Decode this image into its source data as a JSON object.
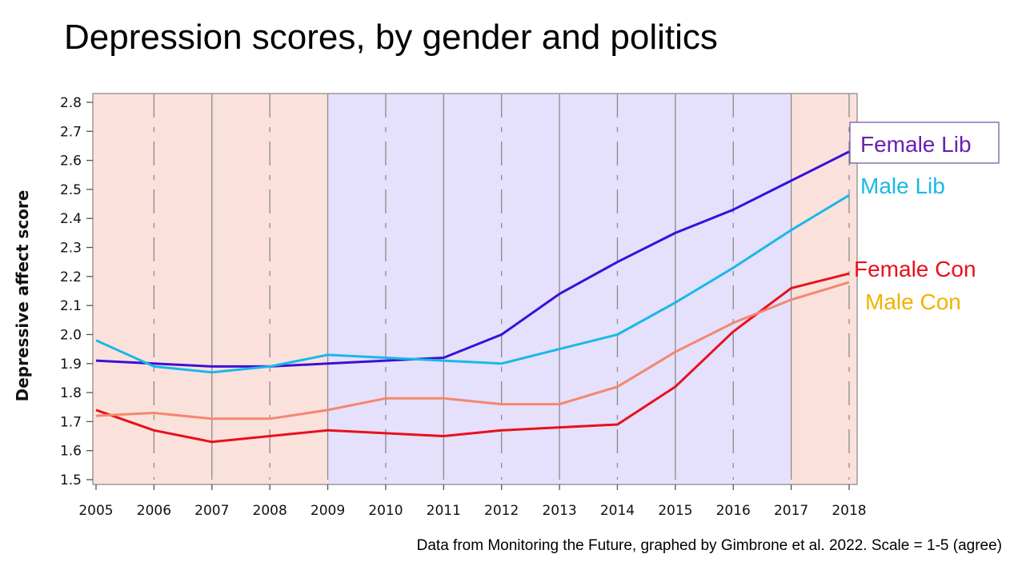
{
  "title": "Depression scores, by gender and politics",
  "source_note": "Data from Monitoring the Future, graphed by Gimbrone et al. 2022. Scale = 1-5 (agree)",
  "chart_data": {
    "type": "line",
    "title": "Depression scores, by gender and politics",
    "xlabel": "",
    "ylabel": "Depressive affect score",
    "x": [
      2005,
      2006,
      2007,
      2008,
      2009,
      2010,
      2011,
      2012,
      2013,
      2014,
      2015,
      2016,
      2017,
      2018
    ],
    "xlim": [
      2005,
      2018
    ],
    "ylim": [
      1.5,
      2.8
    ],
    "yticks": [
      "1.5",
      "1.6",
      "1.7",
      "1.8",
      "1.9",
      "2.0",
      "2.1",
      "2.2",
      "2.3",
      "2.4",
      "2.5",
      "2.6",
      "2.7",
      "2.8"
    ],
    "xticks": [
      "2005",
      "2006",
      "2007",
      "2008",
      "2009",
      "2010",
      "2011",
      "2012",
      "2013",
      "2014",
      "2015",
      "2016",
      "2017",
      "2018"
    ],
    "grid": "vertical lines at each year (dashed on even years)",
    "legend": "right, labels at line ends",
    "background_bands": [
      {
        "from": 2005,
        "to": 2009,
        "color": "#fbe1dc"
      },
      {
        "from": 2009,
        "to": 2017,
        "color": "#e5e0fb"
      },
      {
        "from": 2017,
        "to": 2018,
        "color": "#fbe1dc"
      }
    ],
    "series": [
      {
        "name": "Female Lib",
        "color": "#3a10d8",
        "label_color": "#6a1fb0",
        "values": [
          1.91,
          1.9,
          1.89,
          1.89,
          1.9,
          1.91,
          1.92,
          2.0,
          2.14,
          2.25,
          2.35,
          2.43,
          2.53,
          2.63
        ]
      },
      {
        "name": "Male Lib",
        "color": "#19b8e8",
        "label_color": "#19b8e8",
        "values": [
          1.98,
          1.89,
          1.87,
          1.89,
          1.93,
          1.92,
          1.91,
          1.9,
          1.95,
          2.0,
          2.11,
          2.23,
          2.36,
          2.48
        ]
      },
      {
        "name": "Female Con",
        "color": "#e8101c",
        "label_color": "#e8101c",
        "values": [
          1.74,
          1.67,
          1.63,
          1.65,
          1.67,
          1.66,
          1.65,
          1.67,
          1.68,
          1.69,
          1.82,
          2.01,
          2.16,
          2.21
        ]
      },
      {
        "name": "Male Con",
        "color": "#f4876e",
        "label_color": "#f2b200",
        "values": [
          1.72,
          1.73,
          1.71,
          1.71,
          1.74,
          1.78,
          1.78,
          1.76,
          1.76,
          1.82,
          1.94,
          2.04,
          2.12,
          2.18
        ]
      }
    ]
  }
}
